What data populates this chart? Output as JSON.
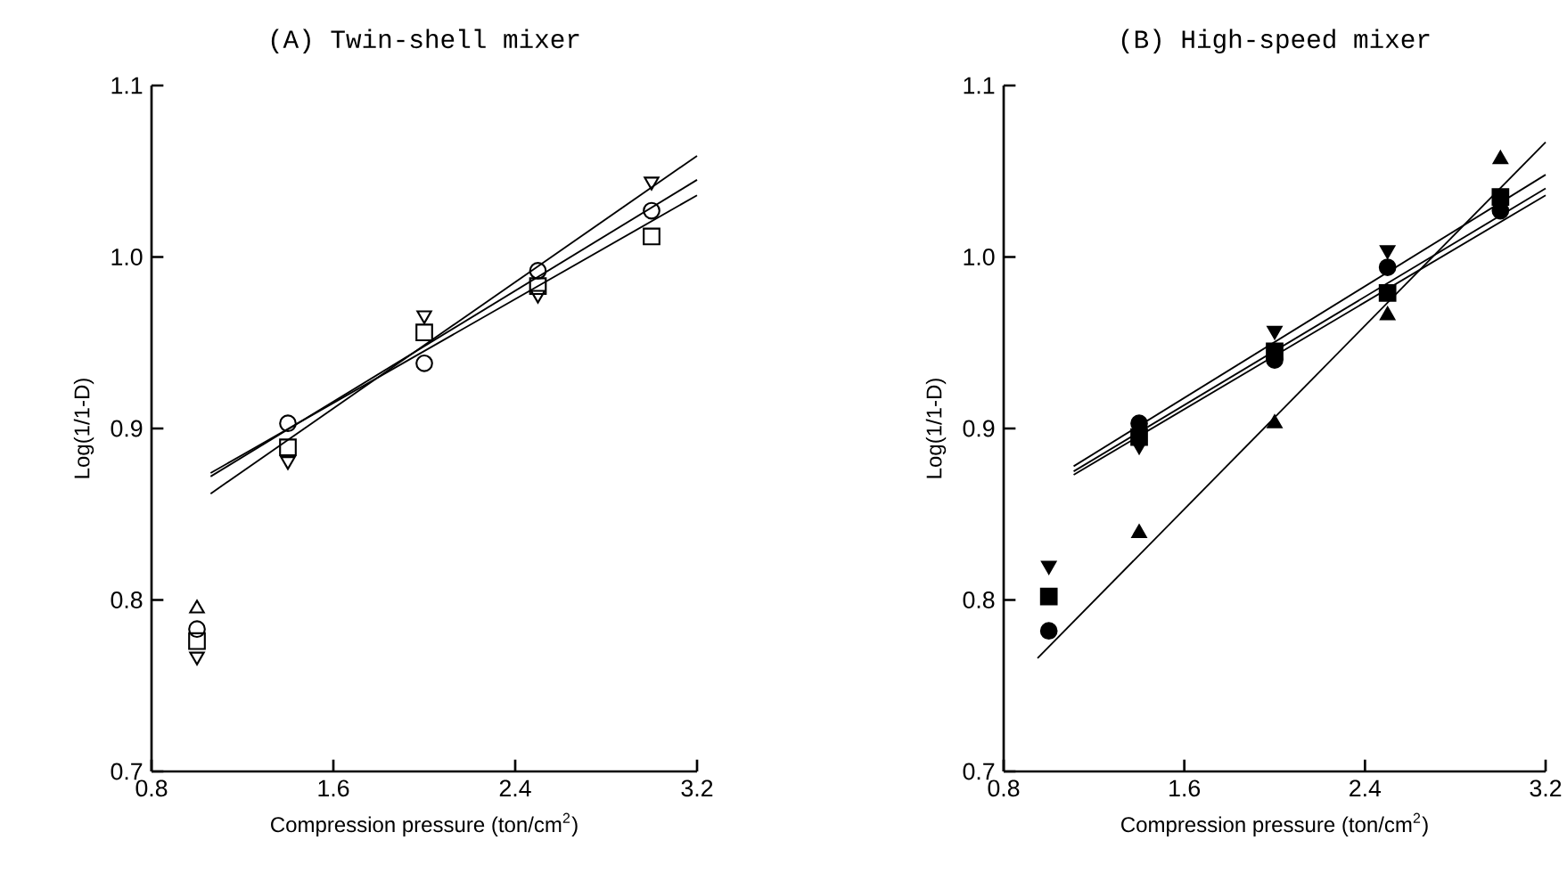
{
  "chart_data": [
    {
      "type": "scatter",
      "title": "(A) Twin-shell mixer",
      "xlabel": "Compression pressure (ton/cm$^{2}$)",
      "ylabel": "Log(1/1-D)",
      "x": [
        1.0,
        1.4,
        2.0,
        2.5,
        3.0
      ],
      "xlim": [
        0.8,
        3.2
      ],
      "ylim": [
        0.7,
        1.1
      ],
      "xticks": [
        0.8,
        1.6,
        2.4,
        3.2
      ],
      "yticks": [
        0.7,
        0.8,
        0.9,
        {
          "value": 1.0,
          "label": "1.0"
        },
        1.1
      ],
      "grid": false,
      "series": [
        {
          "color": "#000000",
          "marker": "triangle-open",
          "values": [
            0.795,
            null,
            null,
            null,
            null
          ]
        },
        {
          "color": "#000000",
          "marker": "triangle-down-open",
          "values": [
            0.767,
            0.881,
            0.966,
            0.978,
            1.044
          ]
        },
        {
          "color": "#000000",
          "marker": "square-open",
          "values": [
            0.776,
            0.889,
            0.956,
            0.983,
            1.012
          ]
        },
        {
          "color": "#000000",
          "marker": "circle-open",
          "values": [
            0.783,
            0.903,
            0.938,
            0.992,
            1.027
          ]
        },
        {
          "type": "line",
          "color": "#000000",
          "marker": "none",
          "x": [
            1.06,
            3.2
          ],
          "values": [
            0.862,
            1.059
          ]
        },
        {
          "type": "line",
          "color": "#000000",
          "marker": "none",
          "x": [
            1.06,
            3.2
          ],
          "values": [
            0.872,
            1.045
          ]
        },
        {
          "type": "line",
          "color": "#000000",
          "marker": "none",
          "x": [
            1.06,
            3.2
          ],
          "values": [
            0.874,
            1.036
          ]
        }
      ]
    },
    {
      "type": "scatter",
      "title": "(B) High-speed mixer",
      "xlabel": "Compression pressure (ton/cm$^{2}$)",
      "ylabel": "Log(1/1-D)",
      "x": [
        1.0,
        1.4,
        2.0,
        2.5,
        3.0
      ],
      "xlim": [
        0.8,
        3.2
      ],
      "ylim": [
        0.7,
        1.1
      ],
      "xticks": [
        0.8,
        1.6,
        2.4,
        3.2
      ],
      "yticks": [
        0.7,
        0.8,
        0.9,
        {
          "value": 1.0,
          "label": "1.0"
        },
        1.1
      ],
      "grid": false,
      "series": [
        {
          "color": "#000000",
          "marker": "triangle",
          "values": [
            null,
            0.839,
            0.903,
            0.966,
            1.057
          ]
        },
        {
          "color": "#000000",
          "marker": "triangle-down",
          "values": [
            0.82,
            0.89,
            0.957,
            1.004,
            null
          ]
        },
        {
          "color": "#000000",
          "marker": "square",
          "values": [
            0.802,
            0.895,
            0.945,
            0.979,
            1.035
          ]
        },
        {
          "color": "#000000",
          "marker": "circle",
          "values": [
            0.782,
            0.903,
            0.94,
            0.994,
            1.027
          ]
        },
        {
          "type": "line",
          "color": "#000000",
          "marker": "none",
          "x": [
            0.95,
            3.2
          ],
          "values": [
            0.766,
            1.067
          ]
        },
        {
          "type": "line",
          "color": "#000000",
          "marker": "none",
          "x": [
            1.11,
            3.2
          ],
          "values": [
            0.878,
            1.048
          ]
        },
        {
          "type": "line",
          "color": "#000000",
          "marker": "none",
          "x": [
            1.11,
            3.2
          ],
          "values": [
            0.875,
            1.04
          ]
        },
        {
          "type": "line",
          "color": "#000000",
          "marker": "none",
          "x": [
            1.11,
            3.2
          ],
          "values": [
            0.873,
            1.036
          ]
        }
      ]
    }
  ]
}
